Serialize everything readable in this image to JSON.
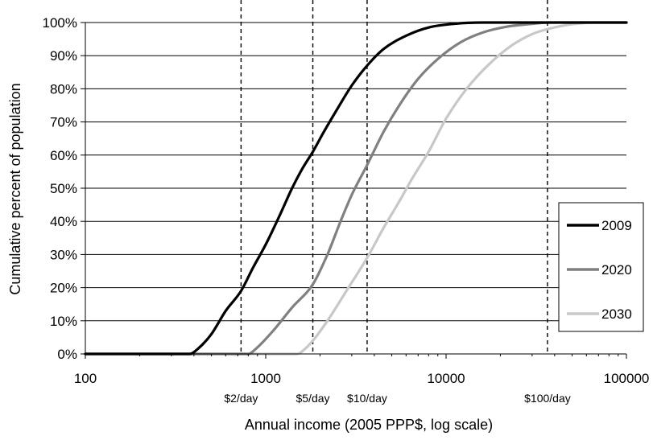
{
  "chart_data": {
    "type": "line",
    "xlabel": "Annual income (2005 PPP$, log scale)",
    "ylabel": "Cumulative percent of population",
    "x_scale": "log",
    "xlim": [
      100,
      100000
    ],
    "ylim": [
      0,
      100
    ],
    "x_ticks": [
      {
        "value": 100,
        "label": "100"
      },
      {
        "value": 1000,
        "label": "1000"
      },
      {
        "value": 10000,
        "label": "10000"
      },
      {
        "value": 100000,
        "label": "100000"
      }
    ],
    "y_ticks": [
      {
        "value": 0,
        "label": "0%"
      },
      {
        "value": 10,
        "label": "10%"
      },
      {
        "value": 20,
        "label": "20%"
      },
      {
        "value": 30,
        "label": "30%"
      },
      {
        "value": 40,
        "label": "40%"
      },
      {
        "value": 50,
        "label": "50%"
      },
      {
        "value": 60,
        "label": "60%"
      },
      {
        "value": 70,
        "label": "70%"
      },
      {
        "value": 80,
        "label": "80%"
      },
      {
        "value": 90,
        "label": "90%"
      },
      {
        "value": 100,
        "label": "100%"
      }
    ],
    "grid": {
      "horizontal": true,
      "vertical": false
    },
    "legend": {
      "placement": "right"
    },
    "reference_lines": [
      {
        "x": 730,
        "label": "$2/day"
      },
      {
        "x": 1825,
        "label": "$5/day"
      },
      {
        "x": 3650,
        "label": "$10/day"
      },
      {
        "x": 36500,
        "label": "$100/day"
      }
    ],
    "series": [
      {
        "name": "2009",
        "color": "#000000",
        "points": [
          [
            100,
            0
          ],
          [
            380,
            0
          ],
          [
            420,
            1.5
          ],
          [
            500,
            6
          ],
          [
            600,
            13
          ],
          [
            730,
            19
          ],
          [
            850,
            26
          ],
          [
            1000,
            33
          ],
          [
            1200,
            42
          ],
          [
            1400,
            50
          ],
          [
            1600,
            56
          ],
          [
            1825,
            61
          ],
          [
            2100,
            67
          ],
          [
            2500,
            74
          ],
          [
            3000,
            81
          ],
          [
            3650,
            87
          ],
          [
            4500,
            92
          ],
          [
            6000,
            96
          ],
          [
            8000,
            98.5
          ],
          [
            11000,
            99.6
          ],
          [
            16000,
            100
          ],
          [
            100000,
            100
          ]
        ]
      },
      {
        "name": "2020",
        "color": "#808080",
        "points": [
          [
            100,
            0
          ],
          [
            800,
            0
          ],
          [
            880,
            1.5
          ],
          [
            1100,
            7
          ],
          [
            1400,
            14
          ],
          [
            1825,
            21
          ],
          [
            2200,
            30
          ],
          [
            2600,
            40
          ],
          [
            3000,
            48
          ],
          [
            3650,
            57
          ],
          [
            4500,
            67
          ],
          [
            5500,
            75
          ],
          [
            7000,
            83
          ],
          [
            9000,
            89
          ],
          [
            12000,
            94
          ],
          [
            16000,
            97
          ],
          [
            22000,
            98.8
          ],
          [
            30000,
            99.6
          ],
          [
            36500,
            100
          ],
          [
            100000,
            100
          ]
        ]
      },
      {
        "name": "2030",
        "color": "#c8c8c8",
        "points": [
          [
            100,
            0
          ],
          [
            1500,
            0
          ],
          [
            1650,
            1.5
          ],
          [
            1825,
            4
          ],
          [
            2200,
            10
          ],
          [
            2800,
            19
          ],
          [
            3650,
            29
          ],
          [
            4500,
            38
          ],
          [
            5500,
            46
          ],
          [
            6500,
            53
          ],
          [
            8000,
            61
          ],
          [
            10000,
            71
          ],
          [
            13000,
            80
          ],
          [
            17000,
            87
          ],
          [
            23000,
            93
          ],
          [
            30000,
            96.5
          ],
          [
            36500,
            98
          ],
          [
            50000,
            99.5
          ],
          [
            70000,
            100
          ],
          [
            100000,
            100
          ]
        ]
      }
    ]
  }
}
